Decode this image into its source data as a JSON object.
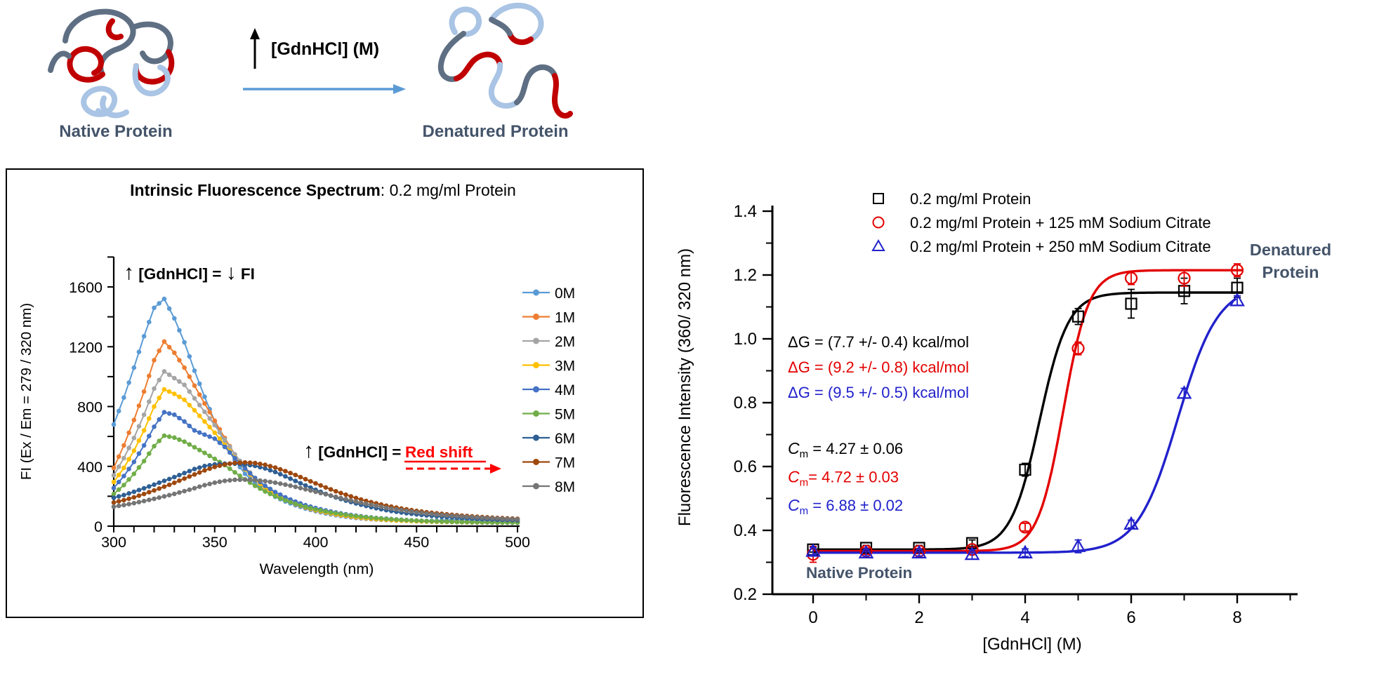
{
  "figure": {
    "background": "#FFFFFF",
    "schematic": {
      "native_label": "Native Protein",
      "denatured_label": "Denatured Protein",
      "arrow_text": "[GdnHCl] (M)",
      "label_color": "#44546A",
      "blue_arrow_color": "#5B9BD5",
      "ribbon_colors": {
        "red": "#C00000",
        "slate": "#5F6F83",
        "light_blue": "#A9C4E4"
      }
    }
  },
  "chart_data": [
    {
      "type": "line",
      "title_bold": "Intrinsic Fluorescence Spectrum",
      "title_rest": ": 0.2 mg/ml Protein",
      "xlabel": "Wavelength (nm)",
      "ylabel": "FI (Ex / Em = 279 / 320 nm)",
      "xlim": [
        300,
        500
      ],
      "ylim": [
        0,
        1800
      ],
      "xticks": [
        300,
        350,
        400,
        450,
        500
      ],
      "xminor_step": 10,
      "yticks": [
        0,
        400,
        800,
        1200,
        1600
      ],
      "yminor_step": 200,
      "grid": false,
      "legend_position": "right",
      "x_start": 300,
      "x_step": 5,
      "annotation_top": {
        "arrow_up": "↑",
        "text": " [GdnHCl] = ",
        "arrow_down": "↓",
        "suffix": " FI"
      },
      "annotation_redshift": {
        "arrow_up": "↑",
        "prefix": " [GdnHCl] = ",
        "red_text": "Red shift",
        "red_color": "#FF0000"
      },
      "series": [
        {
          "name": "0M",
          "color": "#5B9BD5",
          "values": [
            680,
            860,
            1060,
            1270,
            1460,
            1520,
            1390,
            1230,
            1040,
            865,
            700,
            555,
            440,
            350,
            285,
            235,
            196,
            165,
            140,
            118,
            100,
            85,
            73,
            63,
            55,
            49,
            44,
            41,
            38,
            36,
            35,
            35,
            36,
            40,
            44,
            42,
            38,
            36,
            35,
            34,
            34
          ]
        },
        {
          "name": "1M",
          "color": "#ED7D31",
          "values": [
            390,
            540,
            710,
            900,
            1110,
            1235,
            1160,
            1060,
            940,
            820,
            705,
            590,
            480,
            385,
            310,
            255,
            210,
            175,
            147,
            124,
            105,
            90,
            77,
            67,
            58,
            51,
            46,
            42,
            38,
            36,
            34,
            32,
            31,
            30,
            30,
            29,
            28,
            28,
            27,
            27,
            27
          ]
        },
        {
          "name": "2M",
          "color": "#A5A5A5",
          "values": [
            340,
            455,
            590,
            745,
            920,
            1035,
            990,
            945,
            855,
            765,
            675,
            580,
            480,
            395,
            322,
            263,
            217,
            180,
            151,
            127,
            108,
            92,
            79,
            69,
            60,
            53,
            47,
            42,
            39,
            36,
            33,
            31,
            30,
            29,
            28,
            27,
            26,
            26,
            25,
            25,
            25
          ]
        },
        {
          "name": "3M",
          "color": "#FFC000",
          "values": [
            295,
            390,
            505,
            640,
            800,
            915,
            885,
            845,
            775,
            700,
            625,
            545,
            458,
            380,
            312,
            257,
            213,
            178,
            150,
            127,
            108,
            93,
            80,
            70,
            61,
            54,
            48,
            43,
            39,
            36,
            33,
            31,
            29,
            28,
            27,
            26,
            25,
            25,
            24,
            24,
            24
          ]
        },
        {
          "name": "4M",
          "color": "#4472C4",
          "values": [
            255,
            335,
            430,
            540,
            665,
            762,
            745,
            700,
            640,
            612,
            585,
            530,
            455,
            385,
            322,
            270,
            228,
            193,
            164,
            140,
            121,
            105,
            91,
            80,
            70,
            62,
            55,
            50,
            45,
            41,
            37,
            34,
            32,
            30,
            28,
            27,
            26,
            25,
            24,
            24,
            23
          ]
        },
        {
          "name": "5M",
          "color": "#70AD47",
          "values": [
            215,
            275,
            350,
            435,
            535,
            605,
            592,
            565,
            528,
            490,
            450,
            408,
            360,
            313,
            270,
            232,
            200,
            172,
            149,
            129,
            112,
            98,
            86,
            76,
            67,
            60,
            54,
            48,
            44,
            40,
            37,
            34,
            32,
            30,
            28,
            27,
            26,
            25,
            24,
            24,
            23
          ]
        },
        {
          "name": "6M",
          "color": "#2E5F94",
          "values": [
            190,
            208,
            230,
            253,
            278,
            303,
            328,
            355,
            382,
            402,
            413,
            418,
            418,
            413,
            403,
            386,
            362,
            333,
            302,
            272,
            243,
            216,
            192,
            171,
            152,
            135,
            120,
            107,
            96,
            87,
            79,
            72,
            66,
            61,
            57,
            53,
            49,
            46,
            43,
            41,
            39
          ]
        },
        {
          "name": "7M",
          "color": "#9E480E",
          "values": [
            158,
            174,
            193,
            215,
            239,
            264,
            290,
            318,
            346,
            373,
            396,
            413,
            423,
            426,
            422,
            410,
            392,
            368,
            342,
            314,
            286,
            259,
            233,
            210,
            188,
            169,
            152,
            137,
            124,
            112,
            102,
            93,
            86,
            79,
            73,
            68,
            63,
            59,
            55,
            52,
            49
          ]
        },
        {
          "name": "8M",
          "color": "#757575",
          "values": [
            130,
            141,
            154,
            168,
            183,
            199,
            216,
            234,
            254,
            274,
            291,
            303,
            310,
            311,
            308,
            301,
            291,
            278,
            263,
            247,
            230,
            213,
            196,
            180,
            164,
            149,
            136,
            123,
            112,
            102,
            93,
            85,
            78,
            72,
            67,
            62,
            58,
            54,
            51,
            48,
            45
          ]
        }
      ]
    },
    {
      "type": "scatter",
      "xlabel": "[GdnHCl] (M)",
      "ylabel": "Fluorescence Intensity (360/ 320 nm)",
      "xlim": [
        0,
        9
      ],
      "ylim": [
        0.2,
        1.4
      ],
      "xticks": [
        0,
        2,
        4,
        6,
        8
      ],
      "xminor": [
        1,
        3,
        5,
        7,
        9
      ],
      "yticks": [
        0.2,
        0.4,
        0.6,
        0.8,
        1.0,
        1.2,
        1.4
      ],
      "yminor": [
        0.3,
        0.5,
        0.7,
        0.9,
        1.1,
        1.3
      ],
      "grid": false,
      "legend_position": "top-left",
      "x": [
        0,
        1,
        2,
        3,
        4,
        5,
        6,
        7,
        8
      ],
      "series": [
        {
          "name": "0.2 mg/ml Protein",
          "marker": "square",
          "color": "#000000",
          "values": [
            0.34,
            0.345,
            0.345,
            0.36,
            0.59,
            1.07,
            1.11,
            1.15,
            1.16
          ],
          "errors": [
            0.008,
            0.008,
            0.008,
            0.01,
            0.02,
            0.025,
            0.045,
            0.04,
            0.03
          ],
          "fit": {
            "base": 0.34,
            "top": 1.145,
            "cm": 4.27,
            "w": 0.27
          }
        },
        {
          "name": "0.2 mg/ml Protein + 125 mM Sodium Citrate",
          "marker": "circle",
          "color": "#E30000",
          "values": [
            0.325,
            0.335,
            0.335,
            0.34,
            0.41,
            0.97,
            1.19,
            1.19,
            1.215
          ],
          "errors": [
            0.025,
            0.01,
            0.008,
            0.008,
            0.012,
            0.02,
            0.02,
            0.025,
            0.02
          ],
          "fit": {
            "base": 0.335,
            "top": 1.215,
            "cm": 4.72,
            "w": 0.24
          }
        },
        {
          "name": "0.2 mg/ml Protein + 250 mM Sodium Citrate",
          "marker": "triangle",
          "color": "#2121CC",
          "values": [
            0.335,
            0.33,
            0.33,
            0.325,
            0.33,
            0.35,
            0.42,
            0.83,
            1.12
          ],
          "errors": [
            0.012,
            0.01,
            0.01,
            0.015,
            0.012,
            0.02,
            0.012,
            0.015,
            0.015
          ],
          "fit": {
            "base": 0.33,
            "top": 1.17,
            "cm": 6.88,
            "w": 0.38
          }
        }
      ],
      "delta_g_lines": [
        {
          "text": "ΔG = (7.7 +/- 0.4) kcal/mol",
          "color": "#000000"
        },
        {
          "text": "ΔG = (9.2 +/- 0.8) kcal/mol",
          "color": "#E30000"
        },
        {
          "text": "ΔG = (9.5 +/- 0.5) kcal/mol",
          "color": "#2121CC"
        }
      ],
      "cm_lines": [
        {
          "main": "C",
          "sub": "m",
          "rest": " = 4.27 ± 0.06",
          "color": "#000000"
        },
        {
          "main": "C",
          "sub": "m",
          "rest": "= 4.72 ± 0.03",
          "color": "#E30000"
        },
        {
          "main": "C",
          "sub": "m",
          "rest": " = 6.88 ± 0.02",
          "color": "#2121CC"
        }
      ],
      "native_label": "Native Protein",
      "denatured_label_line1": "Denatured",
      "denatured_label_line2": "Protein",
      "state_label_color": "#44546A"
    }
  ]
}
